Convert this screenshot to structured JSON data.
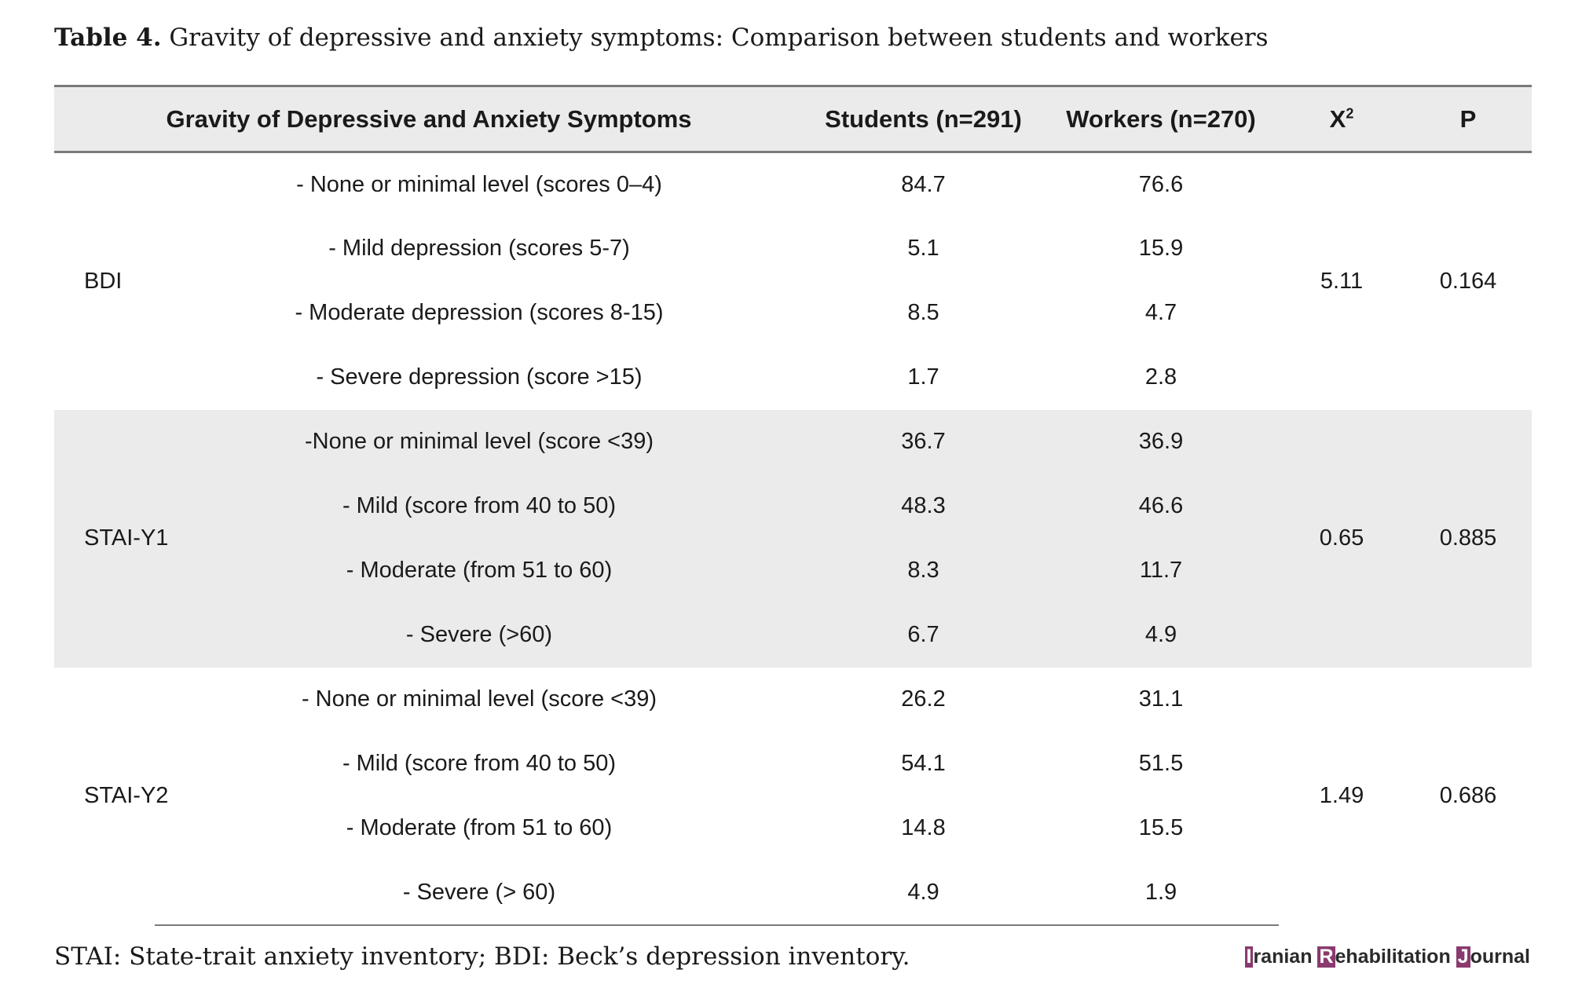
{
  "caption": {
    "label": "Table 4.",
    "title": "Gravity of depressive and anxiety symptoms: Comparison between students and workers"
  },
  "table": {
    "headers": {
      "category": "Gravity of Depressive and Anxiety Symptoms",
      "students": "Students (n=291)",
      "workers": "Workers (n=270)",
      "chi_base": "X",
      "chi_sup": "2",
      "p": "P"
    },
    "groups": [
      {
        "scale": "BDI",
        "chi2": "5.11",
        "p": "0.164",
        "rows": [
          {
            "level": "- None or minimal level (scores 0–4)",
            "students": "84.7",
            "workers": "76.6"
          },
          {
            "level": "- Mild depression (scores 5-7)",
            "students": "5.1",
            "workers": "15.9"
          },
          {
            "level": "- Moderate depression (scores 8-15)",
            "students": "8.5",
            "workers": "4.7"
          },
          {
            "level": "- Severe depression (score >15)",
            "students": "1.7",
            "workers": "2.8"
          }
        ]
      },
      {
        "scale": "STAI-Y1",
        "chi2": "0.65",
        "p": "0.885",
        "rows": [
          {
            "level": "-None or minimal level (score <39)",
            "students": "36.7",
            "workers": "36.9"
          },
          {
            "level": "- Mild (score from 40 to 50)",
            "students": "48.3",
            "workers": "46.6"
          },
          {
            "level": "- Moderate (from 51 to 60)",
            "students": "8.3",
            "workers": "11.7"
          },
          {
            "level": "- Severe (>60)",
            "students": "6.7",
            "workers": "4.9"
          }
        ]
      },
      {
        "scale": "STAI-Y2",
        "chi2": "1.49",
        "p": "0.686",
        "rows": [
          {
            "level": "- None or minimal level (score <39)",
            "students": "26.2",
            "workers": "31.1"
          },
          {
            "level": "- Mild (score from 40 to 50)",
            "students": "54.1",
            "workers": "51.5"
          },
          {
            "level": "- Moderate (from 51 to 60)",
            "students": "14.8",
            "workers": "15.5"
          },
          {
            "level": "- Severe (> 60)",
            "students": "4.9",
            "workers": "1.9"
          }
        ]
      }
    ]
  },
  "footnote": "STAI: State-trait anxiety inventory; BDI: Beck’s depression inventory.",
  "logo": {
    "i_letter": "I",
    "i_rest": "ranian ",
    "r_letter": "R",
    "r_rest": "ehabilitation ",
    "j_letter": "J",
    "j_rest": "ournal"
  },
  "colors": {
    "header_band": "#ebebeb",
    "rule": "#7a7a7a",
    "logo_accent": "#8a3a6e"
  }
}
